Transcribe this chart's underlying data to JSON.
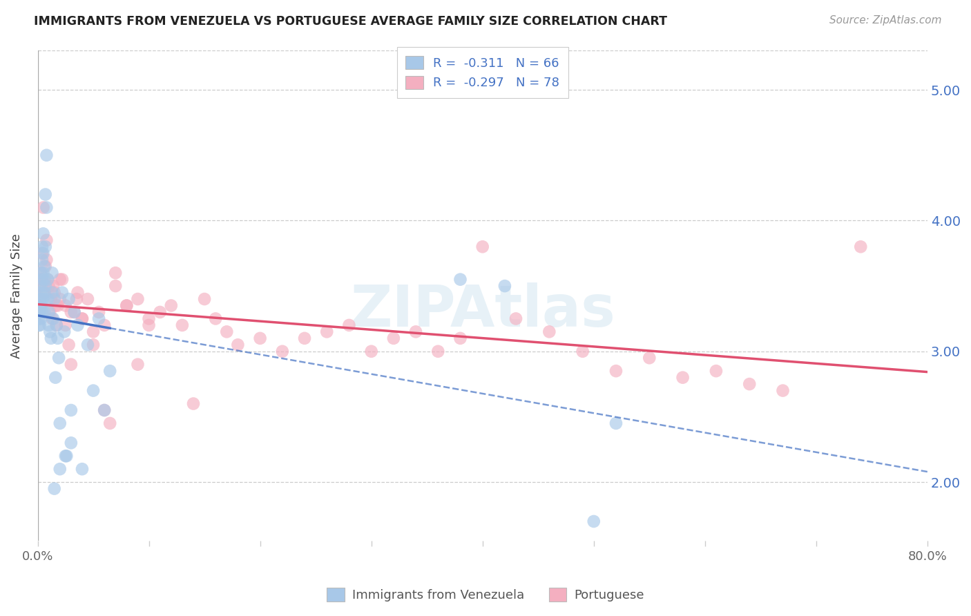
{
  "title": "IMMIGRANTS FROM VENEZUELA VS PORTUGUESE AVERAGE FAMILY SIZE CORRELATION CHART",
  "source": "Source: ZipAtlas.com",
  "ylabel": "Average Family Size",
  "yticks": [
    2.0,
    3.0,
    4.0,
    5.0
  ],
  "xlim": [
    0.0,
    0.8
  ],
  "ylim": [
    1.55,
    5.3
  ],
  "legend_label1": "Immigrants from Venezuela",
  "legend_label2": "Portuguese",
  "R1": -0.311,
  "N1": 66,
  "R2": -0.297,
  "N2": 78,
  "color_blue": "#a8c8e8",
  "color_pink": "#f4afc0",
  "color_blue_line": "#4472c4",
  "color_pink_line": "#e05070",
  "color_blue_text": "#4472c4",
  "watermark": "ZIPAtlas",
  "venezuela_x": [
    0.001,
    0.001,
    0.001,
    0.002,
    0.002,
    0.002,
    0.002,
    0.003,
    0.003,
    0.003,
    0.003,
    0.003,
    0.004,
    0.004,
    0.004,
    0.004,
    0.004,
    0.005,
    0.005,
    0.005,
    0.005,
    0.006,
    0.006,
    0.006,
    0.006,
    0.007,
    0.007,
    0.007,
    0.008,
    0.008,
    0.009,
    0.009,
    0.01,
    0.01,
    0.011,
    0.012,
    0.013,
    0.013,
    0.014,
    0.015,
    0.016,
    0.017,
    0.018,
    0.019,
    0.02,
    0.022,
    0.024,
    0.026,
    0.028,
    0.03,
    0.033,
    0.036,
    0.04,
    0.045,
    0.05,
    0.055,
    0.06,
    0.065,
    0.38,
    0.42,
    0.5,
    0.52,
    0.015,
    0.02,
    0.025,
    0.03
  ],
  "venezuela_y": [
    3.3,
    3.25,
    3.2,
    3.45,
    3.35,
    3.3,
    3.2,
    3.6,
    3.5,
    3.4,
    3.35,
    3.25,
    3.8,
    3.7,
    3.55,
    3.4,
    3.3,
    3.9,
    3.75,
    3.6,
    3.4,
    3.65,
    3.55,
    3.45,
    3.3,
    4.2,
    3.8,
    3.5,
    4.5,
    4.1,
    3.55,
    3.4,
    3.3,
    3.2,
    3.15,
    3.1,
    3.6,
    3.45,
    3.25,
    3.4,
    2.8,
    3.2,
    3.1,
    2.95,
    2.45,
    3.45,
    3.15,
    2.2,
    3.4,
    2.55,
    3.3,
    3.2,
    2.1,
    3.05,
    2.7,
    3.25,
    2.55,
    2.85,
    3.55,
    3.5,
    1.7,
    2.45,
    1.95,
    2.1,
    2.2,
    2.3
  ],
  "portuguese_x": [
    0.001,
    0.002,
    0.002,
    0.003,
    0.004,
    0.004,
    0.005,
    0.006,
    0.007,
    0.008,
    0.008,
    0.009,
    0.01,
    0.011,
    0.012,
    0.013,
    0.014,
    0.015,
    0.016,
    0.017,
    0.018,
    0.02,
    0.022,
    0.025,
    0.028,
    0.03,
    0.033,
    0.036,
    0.04,
    0.045,
    0.05,
    0.055,
    0.06,
    0.065,
    0.07,
    0.08,
    0.09,
    0.1,
    0.11,
    0.12,
    0.13,
    0.14,
    0.15,
    0.16,
    0.17,
    0.18,
    0.2,
    0.22,
    0.24,
    0.26,
    0.28,
    0.3,
    0.32,
    0.34,
    0.36,
    0.38,
    0.4,
    0.43,
    0.46,
    0.49,
    0.52,
    0.55,
    0.58,
    0.61,
    0.64,
    0.67,
    0.02,
    0.025,
    0.03,
    0.035,
    0.04,
    0.05,
    0.06,
    0.07,
    0.08,
    0.09,
    0.1,
    0.74
  ],
  "portuguese_y": [
    3.35,
    3.5,
    3.4,
    3.6,
    3.75,
    3.55,
    4.1,
    3.45,
    3.65,
    3.85,
    3.7,
    3.55,
    3.5,
    3.3,
    3.4,
    3.25,
    3.5,
    3.45,
    3.35,
    3.2,
    3.35,
    3.4,
    3.55,
    3.2,
    3.05,
    2.9,
    3.3,
    3.45,
    3.25,
    3.4,
    3.15,
    3.3,
    3.2,
    2.45,
    3.5,
    3.35,
    2.9,
    3.25,
    3.3,
    3.35,
    3.2,
    2.6,
    3.4,
    3.25,
    3.15,
    3.05,
    3.1,
    3.0,
    3.1,
    3.15,
    3.2,
    3.0,
    3.1,
    3.15,
    3.0,
    3.1,
    3.8,
    3.25,
    3.15,
    3.0,
    2.85,
    2.95,
    2.8,
    2.85,
    2.75,
    2.7,
    3.55,
    3.35,
    3.3,
    3.4,
    3.25,
    3.05,
    2.55,
    3.6,
    3.35,
    3.4,
    3.2,
    3.8
  ]
}
